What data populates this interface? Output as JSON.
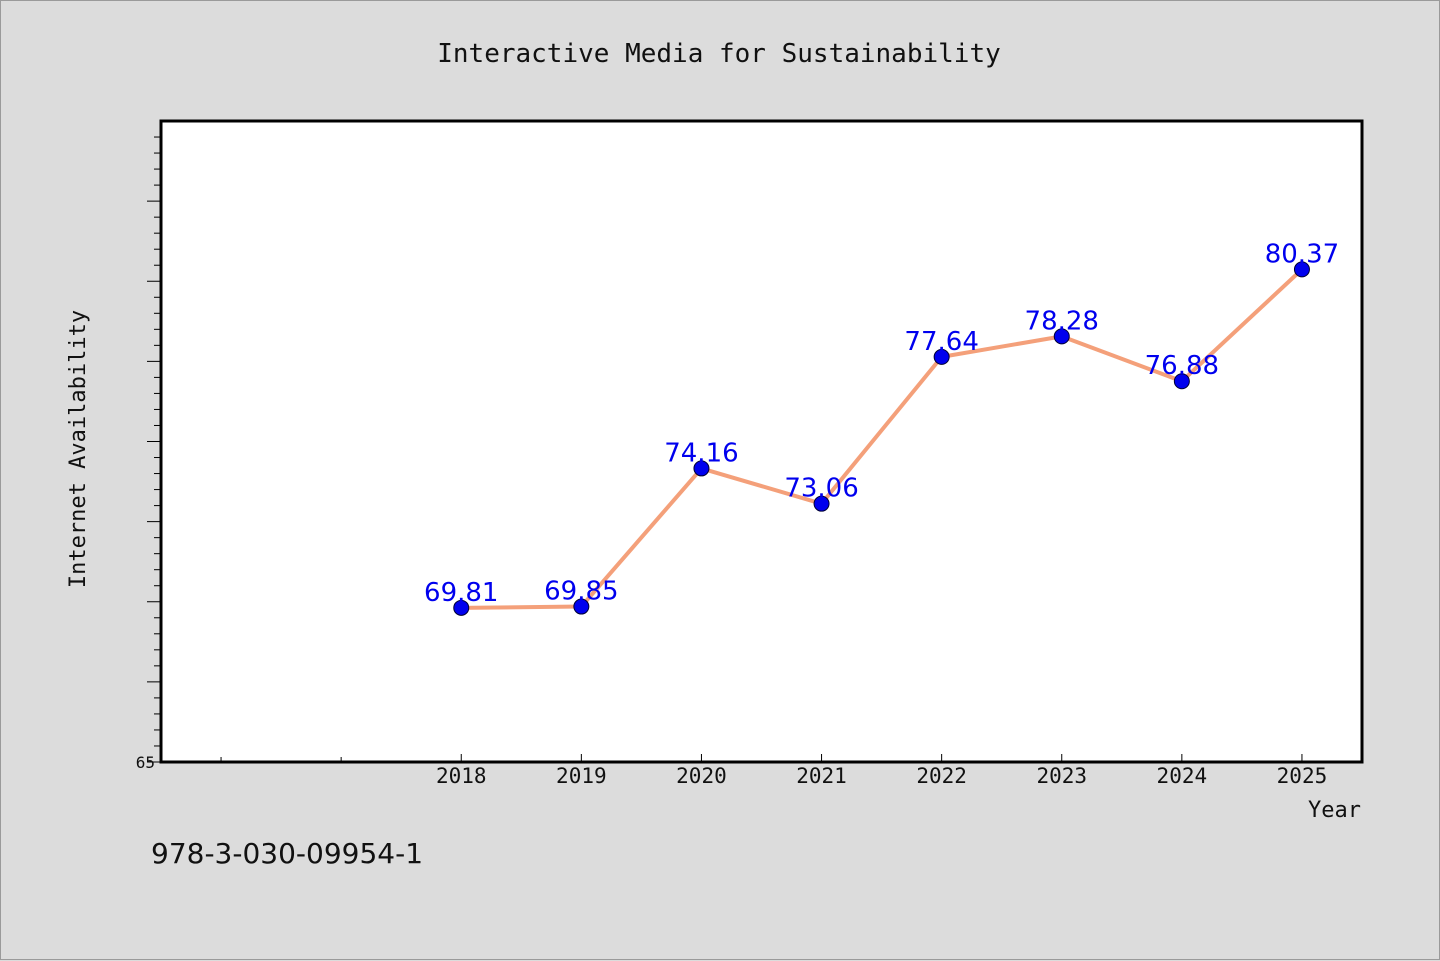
{
  "chart_data": {
    "type": "line",
    "title": "Interactive Media for Sustainability",
    "xlabel": "Year",
    "ylabel": "Internet Availability",
    "categories": [
      "2018",
      "2019",
      "2020",
      "2021",
      "2022",
      "2023",
      "2024",
      "2025"
    ],
    "series": [
      {
        "values": [
          69.81,
          69.85,
          74.16,
          73.06,
          77.64,
          78.28,
          76.88,
          80.37
        ]
      }
    ],
    "data_labels": [
      "69.81",
      "69.85",
      "74.16",
      "73.06",
      "77.64",
      "78.28",
      "76.88",
      "80.37"
    ],
    "x_range": [
      2015.5,
      2025.5
    ],
    "ylim": [
      65,
      85
    ],
    "ytick_labels": [
      "65"
    ],
    "grid": false,
    "colors": {
      "line": "#f4a07a",
      "marker": "#0000ee",
      "data_label": "#0000ee",
      "plot_background": "#ffffff",
      "page_background": "#dcdcdc"
    }
  },
  "footer": {
    "isbn": "978-3-030-09954-1"
  }
}
